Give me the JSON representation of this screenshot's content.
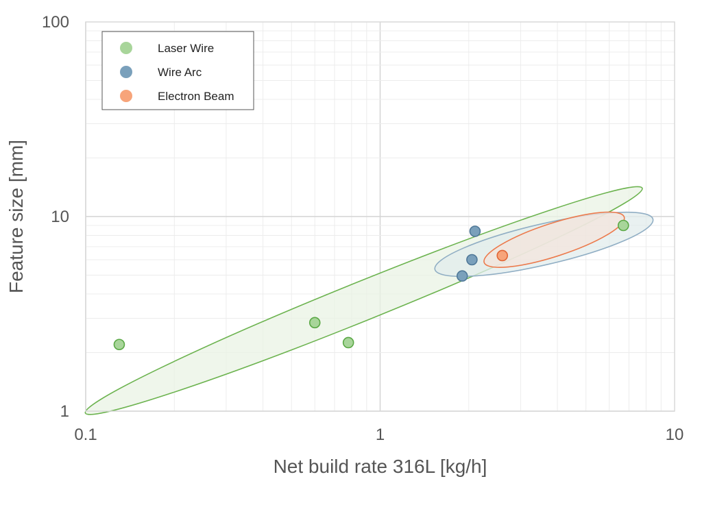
{
  "chart_data": {
    "type": "scatter",
    "xscale": "log",
    "yscale": "log",
    "xlim": [
      0.1,
      10
    ],
    "ylim": [
      1,
      100
    ],
    "xlabel": "Net build rate 316L [kg/h]",
    "ylabel": "Feature size [mm]",
    "x_ticks": [
      "0.1",
      "1",
      "10"
    ],
    "y_ticks": [
      "1",
      "10",
      "100"
    ],
    "grid": true,
    "legend_position": "top-left",
    "series": [
      {
        "name": "Laser Wire",
        "color": "#a8d59a",
        "stroke": "#5aa845",
        "points": [
          [
            0.13,
            2.2
          ],
          [
            0.6,
            2.85
          ],
          [
            0.78,
            2.25
          ],
          [
            6.7,
            9.0
          ]
        ]
      },
      {
        "name": "Wire Arc",
        "color": "#7aa0bb",
        "stroke": "#4f7898",
        "points": [
          [
            2.1,
            8.4
          ],
          [
            2.05,
            6.0
          ],
          [
            1.9,
            4.95
          ]
        ]
      },
      {
        "name": "Electron Beam",
        "color": "#f7a47a",
        "stroke": "#e06535",
        "points": [
          [
            2.6,
            6.3
          ]
        ]
      }
    ],
    "envelopes": [
      {
        "series": "Laser Wire",
        "fill": "#eaf3e4",
        "stroke": "#6cb34f",
        "center": [
          0.88,
          3.7
        ],
        "semi_axes_decades": [
          1.02,
          0.1
        ],
        "angle_deg": 22
      },
      {
        "series": "Wire Arc",
        "fill": "#e2ecec",
        "stroke": "#90aec4",
        "center": [
          3.6,
          7.2
        ],
        "semi_axes_decades": [
          0.38,
          0.105
        ],
        "angle_deg": 13
      },
      {
        "series": "Electron Beam",
        "fill": "#f3e4dc",
        "stroke": "#ec7a4c",
        "center": [
          3.9,
          7.6
        ],
        "semi_axes_decades": [
          0.25,
          0.085
        ],
        "angle_deg": 18
      }
    ]
  }
}
